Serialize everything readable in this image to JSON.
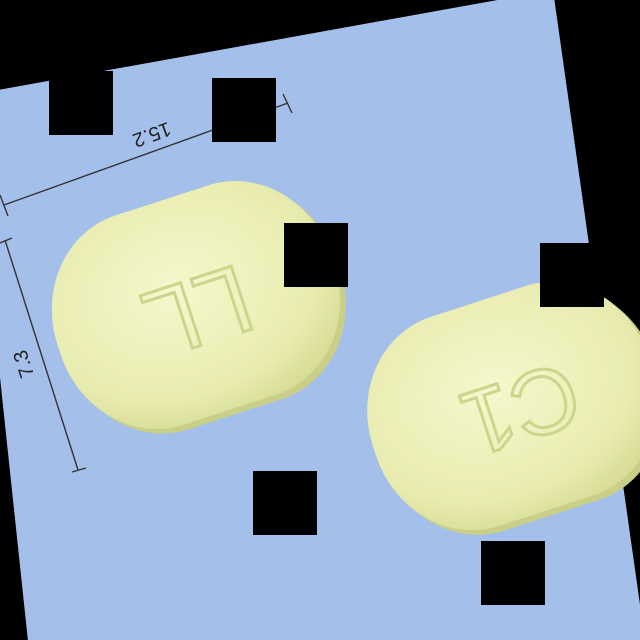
{
  "photo": {
    "background_color": "#a4c0ea",
    "frame_color": "#000000",
    "tablet_color": "#eef0b4",
    "tablet_shadow_color": "#c9cf86",
    "ruler_color": "#333333"
  },
  "measurements": {
    "length_label": "15.2",
    "width_label": "7.3"
  },
  "tablets": [
    {
      "imprint": "LL"
    },
    {
      "imprint": "C1"
    }
  ],
  "occluders": {
    "count": 7
  }
}
